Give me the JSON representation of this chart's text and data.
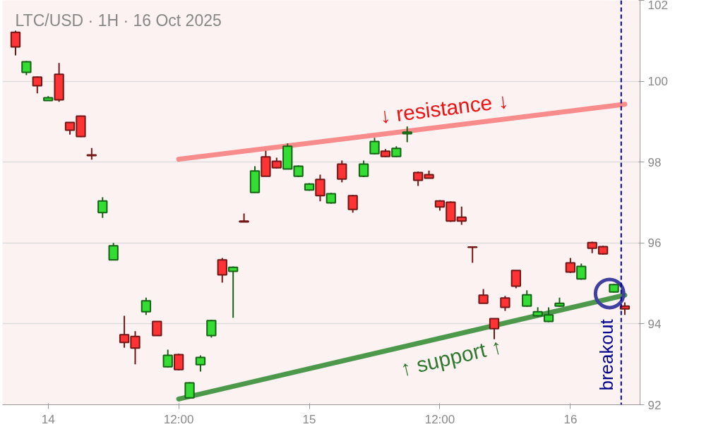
{
  "chart_data": {
    "type": "candlestick",
    "title": "LTC/USD · 1H · 16 Oct 2025",
    "x": [
      "2025-10-13T21:00",
      "2025-10-13T22:00",
      "2025-10-13T23:00",
      "2025-10-14T00:00",
      "2025-10-14T01:00",
      "2025-10-14T02:00",
      "2025-10-14T03:00",
      "2025-10-14T04:00",
      "2025-10-14T05:00",
      "2025-10-14T06:00",
      "2025-10-14T07:00",
      "2025-10-14T08:00",
      "2025-10-14T09:00",
      "2025-10-14T10:00",
      "2025-10-14T11:00",
      "2025-10-14T12:00",
      "2025-10-14T13:00",
      "2025-10-14T14:00",
      "2025-10-14T15:00",
      "2025-10-14T16:00",
      "2025-10-14T17:00",
      "2025-10-14T18:00",
      "2025-10-14T19:00",
      "2025-10-14T20:00",
      "2025-10-14T21:00",
      "2025-10-14T22:00",
      "2025-10-14T23:00",
      "2025-10-15T00:00",
      "2025-10-15T01:00",
      "2025-10-15T02:00",
      "2025-10-15T03:00",
      "2025-10-15T04:00",
      "2025-10-15T05:00",
      "2025-10-15T06:00",
      "2025-10-15T07:00",
      "2025-10-15T08:00",
      "2025-10-15T09:00",
      "2025-10-15T10:00",
      "2025-10-15T11:00",
      "2025-10-15T12:00",
      "2025-10-15T13:00",
      "2025-10-15T14:00",
      "2025-10-15T15:00",
      "2025-10-15T16:00",
      "2025-10-15T17:00",
      "2025-10-15T18:00",
      "2025-10-15T19:00",
      "2025-10-15T20:00",
      "2025-10-15T21:00",
      "2025-10-15T22:00",
      "2025-10-15T23:00",
      "2025-10-16T00:00",
      "2025-10-16T01:00",
      "2025-10-16T02:00",
      "2025-10-16T03:00",
      "2025-10-16T04:00",
      "2025-10-16T05:00"
    ],
    "ohlc": [
      [
        101.21,
        101.25,
        100.64,
        100.85
      ],
      [
        100.22,
        100.5,
        100.15,
        100.48
      ],
      [
        100.1,
        100.12,
        99.7,
        99.89
      ],
      [
        99.52,
        99.63,
        99.52,
        99.59
      ],
      [
        100.17,
        100.45,
        99.49,
        99.54
      ],
      [
        98.98,
        98.98,
        98.68,
        98.79
      ],
      [
        99.14,
        99.15,
        98.62,
        98.63
      ],
      [
        98.18,
        98.35,
        98.06,
        98.16
      ],
      [
        96.75,
        97.13,
        96.62,
        97.04
      ],
      [
        95.58,
        96.0,
        95.57,
        95.93
      ],
      [
        93.73,
        94.2,
        93.41,
        93.54
      ],
      [
        93.69,
        93.82,
        93.0,
        93.4
      ],
      [
        94.3,
        94.65,
        94.22,
        94.57
      ],
      [
        94.06,
        94.06,
        93.71,
        93.71
      ],
      [
        92.94,
        93.36,
        92.92,
        93.22
      ],
      [
        93.24,
        93.26,
        92.85,
        92.87
      ],
      [
        92.17,
        92.56,
        92.15,
        92.54
      ],
      [
        92.99,
        93.22,
        92.82,
        93.17
      ],
      [
        93.71,
        94.1,
        93.66,
        94.08
      ],
      [
        95.58,
        95.63,
        95.02,
        95.21
      ],
      [
        95.3,
        95.42,
        94.15,
        95.4
      ],
      [
        96.54,
        96.73,
        96.52,
        96.52
      ],
      [
        97.25,
        97.9,
        97.24,
        97.78
      ],
      [
        98.13,
        98.28,
        97.65,
        97.65
      ],
      [
        98.02,
        98.11,
        97.84,
        97.86
      ],
      [
        97.83,
        98.46,
        97.83,
        98.39
      ],
      [
        97.65,
        97.92,
        97.63,
        97.9
      ],
      [
        97.31,
        97.48,
        97.29,
        97.46
      ],
      [
        97.57,
        97.69,
        97.03,
        97.17
      ],
      [
        96.99,
        97.24,
        96.97,
        97.22
      ],
      [
        97.95,
        98.04,
        97.5,
        97.58
      ],
      [
        97.17,
        97.19,
        96.75,
        96.83
      ],
      [
        97.65,
        98.04,
        97.63,
        97.95
      ],
      [
        98.21,
        98.6,
        98.19,
        98.51
      ],
      [
        98.27,
        98.32,
        98.12,
        98.14
      ],
      [
        98.14,
        98.39,
        98.12,
        98.34
      ],
      [
        98.7,
        98.88,
        98.49,
        98.74
      ],
      [
        97.74,
        97.77,
        97.41,
        97.55
      ],
      [
        97.69,
        97.79,
        97.6,
        97.6
      ],
      [
        97.04,
        97.06,
        96.8,
        96.89
      ],
      [
        97.01,
        97.03,
        96.52,
        96.54
      ],
      [
        96.64,
        96.9,
        96.45,
        96.54
      ],
      [
        95.9,
        95.92,
        95.51,
        95.89
      ],
      [
        94.71,
        94.86,
        94.51,
        94.51
      ],
      [
        94.13,
        94.13,
        93.62,
        93.88
      ],
      [
        94.64,
        94.69,
        94.32,
        94.41
      ],
      [
        95.32,
        95.32,
        94.88,
        94.93
      ],
      [
        94.44,
        94.83,
        94.42,
        94.72
      ],
      [
        94.2,
        94.41,
        94.17,
        94.3
      ],
      [
        94.06,
        94.41,
        94.04,
        94.22
      ],
      [
        94.44,
        94.65,
        94.42,
        94.51
      ],
      [
        95.51,
        95.63,
        95.26,
        95.28
      ],
      [
        95.11,
        95.49,
        95.09,
        95.42
      ],
      [
        96.01,
        96.03,
        95.75,
        95.87
      ],
      [
        95.91,
        95.93,
        95.71,
        95.73
      ],
      [
        94.79,
        94.99,
        94.77,
        94.97
      ],
      [
        94.44,
        94.53,
        94.22,
        94.37
      ]
    ],
    "colors": [
      "#ff3333",
      "#33dd33",
      "#ff3333",
      "#33dd33",
      "#ff3333",
      "#ff3333",
      "#ff3333",
      "#ff3333",
      "#33dd33",
      "#33dd33",
      "#ff3333",
      "#ff3333",
      "#33dd33",
      "#ff3333",
      "#33dd33",
      "#ff3333",
      "#33dd33",
      "#33dd33",
      "#33dd33",
      "#ff3333",
      "#33dd33",
      "#ff3333",
      "#33dd33",
      "#ff3333",
      "#ff3333",
      "#33dd33",
      "#33dd33",
      "#33dd33",
      "#ff3333",
      "#33dd33",
      "#ff3333",
      "#ff3333",
      "#33dd33",
      "#33dd33",
      "#ff3333",
      "#33dd33",
      "#33dd33",
      "#ff3333",
      "#ff3333",
      "#ff3333",
      "#ff3333",
      "#ff3333",
      "#ff3333",
      "#ff3333",
      "#ff3333",
      "#ff3333",
      "#ff3333",
      "#33dd33",
      "#33dd33",
      "#33dd33",
      "#33dd33",
      "#ff3333",
      "#33dd33",
      "#ff3333",
      "#ff3333",
      "#33dd33",
      "#ff3333"
    ],
    "series": [
      {
        "type": "line",
        "color": "#f77f7f",
        "x": [
          "2025-10-14T12:00",
          "2025-10-16T05:00"
        ],
        "values": [
          98.07,
          99.43
        ]
      },
      {
        "type": "line",
        "color": "#3a8f3a",
        "x": [
          "2025-10-14T12:00",
          "2025-10-16T05:00"
        ],
        "values": [
          92.14,
          94.71
        ]
      },
      {
        "type": "scatter",
        "color": "#4040a0",
        "marker": "circle",
        "x": [
          "2025-10-16T03:36"
        ],
        "values": [
          94.75
        ]
      }
    ],
    "annotations": [
      "↓ resistance ↓",
      "↑ support ↑"
    ],
    "ref_lines": [
      {
        "axis": "x",
        "value": "2025-10-16T04:40",
        "label": "breakout",
        "color": "#00008b",
        "line_style": "dashed"
      }
    ],
    "xlim": [
      "2025-10-13T19:48",
      "2025-10-16T06:24"
    ],
    "xticks": [
      {
        "value": "2025-10-14T00:00",
        "label": "14"
      },
      {
        "value": "2025-10-14T12:00",
        "label": "12:00"
      },
      {
        "value": "2025-10-15T00:00",
        "label": "15"
      },
      {
        "value": "2025-10-15T12:00",
        "label": "12:00"
      },
      {
        "value": "2025-10-16T00:00",
        "label": "16"
      }
    ],
    "ylim": [
      92,
      102
    ],
    "yticks": [
      92,
      94,
      96,
      98,
      100,
      102
    ],
    "grid": "y"
  }
}
